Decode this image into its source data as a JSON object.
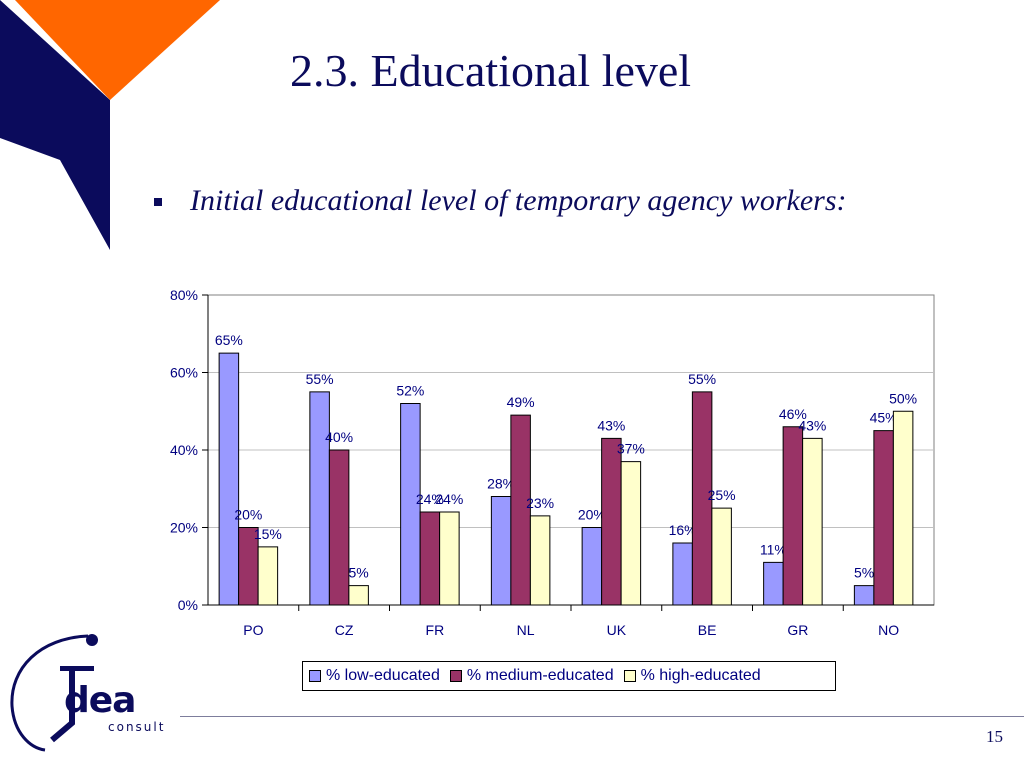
{
  "slide": {
    "title": "2.3. Educational level",
    "bullet": "Initial educational level of temporary agency workers:",
    "page_number": "15",
    "logo_text": "dea",
    "logo_subtext": "consult"
  },
  "colors": {
    "low": "#9999ff",
    "medium": "#993366",
    "high": "#ffffcc",
    "text": "#000080",
    "title": "#0b0b5c",
    "accent_orange": "#ff6600",
    "accent_navy": "#0b0b5c"
  },
  "chart_data": {
    "type": "bar",
    "categories": [
      "PO",
      "CZ",
      "FR",
      "NL",
      "UK",
      "BE",
      "GR",
      "NO"
    ],
    "series": [
      {
        "name": "% low-educated",
        "values": [
          65,
          55,
          52,
          28,
          20,
          16,
          11,
          5
        ]
      },
      {
        "name": "% medium-educated",
        "values": [
          20,
          40,
          24,
          49,
          43,
          55,
          46,
          45
        ]
      },
      {
        "name": "% high-educated",
        "values": [
          15,
          5,
          24,
          23,
          37,
          25,
          43,
          50
        ]
      }
    ],
    "y_ticks": [
      "0%",
      "20%",
      "40%",
      "60%",
      "80%"
    ],
    "ylim": [
      0,
      80
    ],
    "grid": true,
    "legend_position": "bottom",
    "title": "",
    "xlabel": "",
    "ylabel": ""
  }
}
